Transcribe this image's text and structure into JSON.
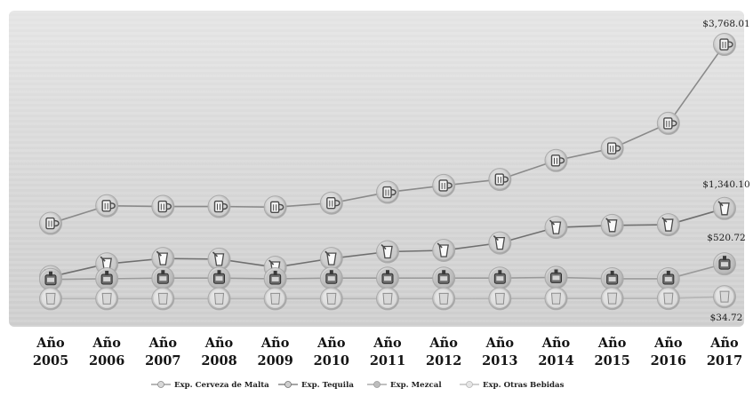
{
  "chart_data": {
    "type": "line",
    "categories": [
      "Año 2005",
      "Año 2006",
      "Año 2007",
      "Año 2008",
      "Año 2009",
      "Año 2010",
      "Año 2011",
      "Año 2012",
      "Año 2013",
      "Año 2014",
      "Año 2015",
      "Año 2016",
      "Año 2017"
    ],
    "series": [
      {
        "name": "Exp. Cerveza de Malta",
        "values": [
          1120,
          1380,
          1370,
          1370,
          1360,
          1420,
          1580,
          1680,
          1770,
          2050,
          2230,
          2600,
          3768.01
        ],
        "end_label": "$3,768.01",
        "color": "#8a8a8a",
        "marker_color": "#d8d8d8",
        "icon": "beer-mug-icon"
      },
      {
        "name": "Exp. Tequila",
        "values": [
          330,
          520,
          600,
          590,
          470,
          600,
          700,
          720,
          830,
          1060,
          1090,
          1100,
          1340.1
        ],
        "end_label": "$1,340.10",
        "color": "#6f6f6f",
        "marker_color": "#cfcfcf",
        "icon": "tequila-glass-icon"
      },
      {
        "name": "Exp. Mezcal",
        "values": [
          290,
          300,
          310,
          310,
          300,
          310,
          310,
          310,
          310,
          320,
          300,
          300,
          520.72
        ],
        "end_label": "$520.72",
        "color": "#9a9a9a",
        "marker_color": "#bdbdbd",
        "icon": "mezcal-bottle-icon"
      },
      {
        "name": "Exp. Otras Bebidas",
        "values": [
          5,
          5,
          5,
          5,
          5,
          5,
          5,
          5,
          6,
          7,
          8,
          8,
          34.72
        ],
        "end_label": "$34.72",
        "color": "#b5b5b5",
        "marker_color": "#e6e6e6",
        "icon": "other-drinks-icon"
      }
    ],
    "ylim": [
      -200,
      3900
    ],
    "legend_position": "bottom",
    "grid": false
  }
}
